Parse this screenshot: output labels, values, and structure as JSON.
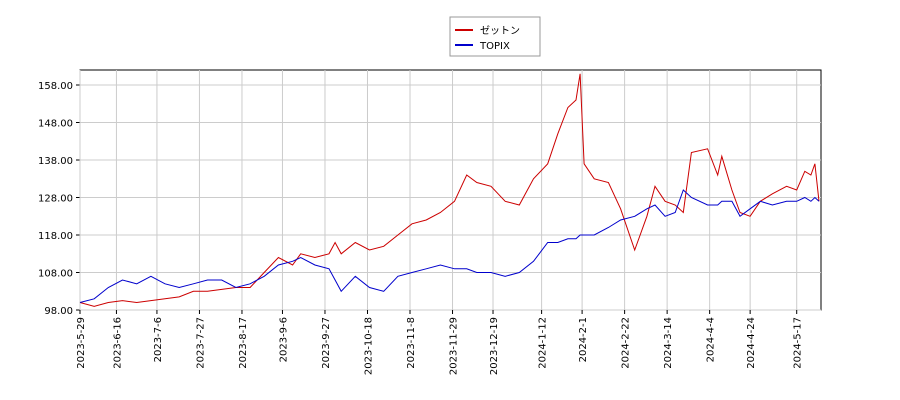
{
  "chart_data": {
    "type": "line",
    "x": [
      "2023-5-29",
      "2023-6-5",
      "2023-6-12",
      "2023-6-19",
      "2023-6-26",
      "2023-7-3",
      "2023-7-10",
      "2023-7-17",
      "2023-7-24",
      "2023-7-31",
      "2023-8-7",
      "2023-8-14",
      "2023-8-21",
      "2023-8-28",
      "2023-9-4",
      "2023-9-11",
      "2023-9-15",
      "2023-9-22",
      "2023-9-29",
      "2023-10-2",
      "2023-10-5",
      "2023-10-12",
      "2023-10-19",
      "2023-10-26",
      "2023-11-2",
      "2023-11-9",
      "2023-11-16",
      "2023-11-23",
      "2023-11-30",
      "2023-12-6",
      "2023-12-11",
      "2023-12-18",
      "2023-12-25",
      "2024-1-1",
      "2024-1-8",
      "2024-1-15",
      "2024-1-20",
      "2024-1-25",
      "2024-1-29",
      "2024-1-31",
      "2024-2-2",
      "2024-2-7",
      "2024-2-14",
      "2024-2-20",
      "2024-2-27",
      "2024-3-4",
      "2024-3-8",
      "2024-3-13",
      "2024-3-18",
      "2024-3-22",
      "2024-3-26",
      "2024-4-3",
      "2024-4-8",
      "2024-4-10",
      "2024-4-15",
      "2024-4-19",
      "2024-4-24",
      "2024-4-29",
      "2024-5-5",
      "2024-5-12",
      "2024-5-17",
      "2024-5-21",
      "2024-5-24",
      "2024-5-26",
      "2024-5-28"
    ],
    "series": [
      {
        "name": "ゼットン",
        "color": "#cc0000",
        "values": [
          100,
          99,
          100,
          100.5,
          100,
          100.5,
          101,
          101.5,
          103,
          103,
          103.5,
          104,
          104,
          108,
          112,
          110,
          113,
          112,
          113,
          116,
          113,
          116,
          114,
          115,
          118,
          121,
          122,
          124,
          127,
          134,
          132,
          131,
          127,
          126,
          133,
          137,
          145,
          152,
          154,
          161,
          137,
          133,
          132,
          125,
          114,
          123,
          131,
          127,
          126,
          124,
          140,
          141,
          134,
          139,
          130,
          124,
          123,
          127,
          129,
          131,
          130,
          135,
          134,
          137,
          127
        ]
      },
      {
        "name": "TOPIX",
        "color": "#0000cc",
        "values": [
          100,
          101,
          104,
          106,
          105,
          107,
          105,
          104,
          105,
          106,
          106,
          104,
          105,
          107,
          110,
          111,
          112,
          110,
          109,
          106,
          103,
          107,
          104,
          103,
          107,
          108,
          109,
          110,
          109,
          109,
          108,
          108,
          107,
          108,
          111,
          116,
          116,
          117,
          117,
          118,
          118,
          118,
          120,
          122,
          123,
          125,
          126,
          123,
          124,
          130,
          128,
          126,
          126,
          127,
          127,
          123,
          125,
          127,
          126,
          127,
          127,
          128,
          127,
          128,
          127
        ]
      }
    ],
    "xlim": [
      "2023-5-29",
      "2024-5-29"
    ],
    "xticks": [
      "2023-5-29",
      "2023-6-16",
      "2023-7-6",
      "2023-7-27",
      "2023-8-17",
      "2023-9-6",
      "2023-9-27",
      "2023-10-18",
      "2023-11-8",
      "2023-11-29",
      "2023-12-19",
      "2024-1-12",
      "2024-2-1",
      "2024-2-22",
      "2024-3-14",
      "2024-4-4",
      "2024-4-24",
      "2024-5-17"
    ],
    "ylim": [
      98,
      162
    ],
    "yticks": [
      {
        "value": 98,
        "label": "98.00"
      },
      {
        "value": 108,
        "label": "108.00"
      },
      {
        "value": 118,
        "label": "118.00"
      },
      {
        "value": 128,
        "label": "128.00"
      },
      {
        "value": 138,
        "label": "138.00"
      },
      {
        "value": 148,
        "label": "148.00"
      },
      {
        "value": 158,
        "label": "158.00"
      }
    ],
    "grid": true
  }
}
